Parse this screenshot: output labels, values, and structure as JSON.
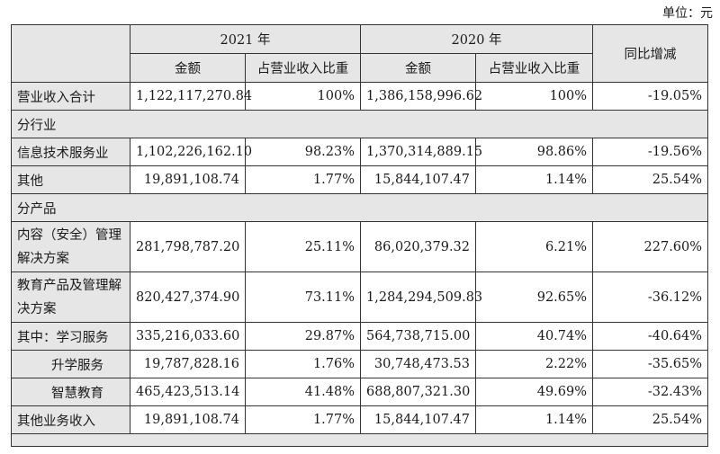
{
  "unit_label": "单位：元",
  "header": {
    "year_2021": "2021 年",
    "year_2020": "2020 年",
    "amount": "金额",
    "share": "占营业收入比重",
    "yoy": "同比增减"
  },
  "rows": {
    "total": {
      "label": "营业收入合计",
      "a2021": "1,122,117,270.84",
      "s2021": "100%",
      "a2020": "1,386,158,996.62",
      "s2020": "100%",
      "yoy": "-19.05%"
    },
    "section_industry": "分行业",
    "it": {
      "label": "信息技术服务业",
      "a2021": "1,102,226,162.10",
      "s2021": "98.23%",
      "a2020": "1,370,314,889.15",
      "s2020": "98.86%",
      "yoy": "-19.56%"
    },
    "other": {
      "label": "其他",
      "a2021": "19,891,108.74",
      "s2021": "1.77%",
      "a2020": "15,844,107.47",
      "s2020": "1.14%",
      "yoy": "25.54%"
    },
    "section_product": "分产品",
    "content": {
      "label": "内容（安全）管理解决方案",
      "a2021": "281,798,787.20",
      "s2021": "25.11%",
      "a2020": "86,020,379.32",
      "s2020": "6.21%",
      "yoy": "227.60%"
    },
    "edu": {
      "label": "教育产品及管理解决方案",
      "a2021": "820,427,374.90",
      "s2021": "73.11%",
      "a2020": "1,284,294,509.83",
      "s2020": "92.65%",
      "yoy": "-36.12%"
    },
    "learning": {
      "label": "其中：学习服务",
      "a2021": "335,216,033.60",
      "s2021": "29.87%",
      "a2020": "564,738,715.00",
      "s2020": "40.74%",
      "yoy": "-40.64%"
    },
    "admission": {
      "label": "升学服务",
      "a2021": "19,787,828.16",
      "s2021": "1.76%",
      "a2020": "30,748,473.53",
      "s2020": "2.22%",
      "yoy": "-35.65%"
    },
    "smart": {
      "label": "智慧教育",
      "a2021": "465,423,513.14",
      "s2021": "41.48%",
      "a2020": "688,807,321.30",
      "s2020": "49.69%",
      "yoy": "-32.43%"
    },
    "other_biz": {
      "label": "其他业务收入",
      "a2021": "19,891,108.74",
      "s2021": "1.77%",
      "a2020": "15,844,107.47",
      "s2020": "1.14%",
      "yoy": "25.54%"
    }
  }
}
